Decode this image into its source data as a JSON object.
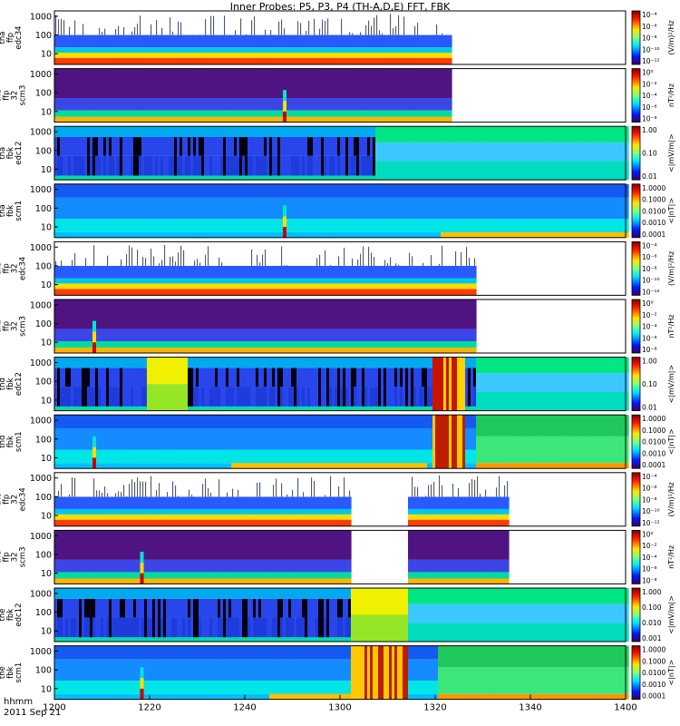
{
  "title": "Inner Probes: P5, P3, P4 (TH-A,D,E) FFT, FBK",
  "footer": {
    "format_label": "hhmm",
    "date_label": "2011 Sep 21"
  },
  "chart_data": {
    "type": "heatmap",
    "x_ticks": [
      "1200",
      "1220",
      "1240",
      "1300",
      "1320",
      "1340",
      "1400"
    ],
    "x_range_minutes": [
      0,
      120
    ],
    "y_ticks": [
      "10",
      "100",
      "1000"
    ],
    "y_scale": "log",
    "panels": [
      {
        "id": "tha-edc34",
        "ylabel": [
          "tha",
          "ffp",
          "edc34"
        ],
        "unit": "(V/m)²/Hz",
        "cb_ticks": [
          "10⁻⁴",
          "10⁻⁶",
          "10⁻⁸",
          "10⁻¹⁰",
          "10⁻¹²"
        ],
        "data_end_min": 83,
        "kind": "e",
        "scratch": 2
      },
      {
        "id": "tha-scm3",
        "ylabel": [
          "tha",
          "ffp",
          "32",
          "scm3"
        ],
        "unit": "nT²/Hz",
        "cb_ticks": [
          "10⁰",
          "10⁻²",
          "10⁻⁴",
          "10⁻⁶",
          "10⁻⁸"
        ],
        "data_end_min": 83,
        "kind": "b",
        "spike_min": 48
      },
      {
        "id": "tha-fbk-edc12",
        "ylabel": [
          "tha",
          "fbk",
          "edc12"
        ],
        "unit": "<|mV/m|>",
        "cb_ticks": [
          "1.00",
          "0.10",
          "0.01"
        ],
        "data_end_min": 120,
        "kind": "fe",
        "green_from_min": 67
      },
      {
        "id": "tha-fbk-scm1",
        "ylabel": [
          "tha",
          "fbk",
          "scm1"
        ],
        "unit": "<|nT|>",
        "cb_ticks": [
          "1.0000",
          "0.1000",
          "0.0100",
          "0.0010",
          "0.0001"
        ],
        "data_end_min": 120,
        "kind": "fb",
        "spike_min": 48,
        "yellow_from_min": 81
      },
      {
        "id": "thd-edc34",
        "ylabel": [
          "thd",
          "ffp",
          "32",
          "edc34"
        ],
        "unit": "(V/m)²/Hz",
        "cb_ticks": [
          "10⁻⁴",
          "10⁻⁶",
          "10⁻⁸",
          "10⁻¹⁰",
          "10⁻¹²"
        ],
        "data_end_min": 88,
        "kind": "e",
        "scratch": 1
      },
      {
        "id": "thd-scm3",
        "ylabel": [
          "thd",
          "ffp",
          "32",
          "scm3"
        ],
        "unit": "nT²/Hz",
        "cb_ticks": [
          "10⁰",
          "10⁻²",
          "10⁻⁴",
          "10⁻⁶",
          "10⁻⁸"
        ],
        "data_end_min": 88,
        "kind": "b",
        "spike_min": 8
      },
      {
        "id": "thd-fbk-edc12",
        "ylabel": [
          "thd",
          "fbk",
          "edc12"
        ],
        "unit": "<|mV/m|>",
        "cb_ticks": [
          "1.00",
          "0.10",
          "0.01"
        ],
        "data_end_min": 120,
        "kind": "fe",
        "yellow_band_min": [
          19,
          28
        ],
        "red_band_min": [
          79,
          86
        ],
        "green_from_min": 88
      },
      {
        "id": "thd-fbk-scm1",
        "ylabel": [
          "thd",
          "fbk",
          "scm1"
        ],
        "unit": "<|nT|>",
        "cb_ticks": [
          "1.0000",
          "0.1000",
          "0.0100",
          "0.0010",
          "0.0001"
        ],
        "data_end_min": 120,
        "kind": "fb",
        "spike_min": 8,
        "yellow_from_min": 37,
        "yellow_to_min": 78,
        "red_band_min": [
          79,
          86
        ],
        "green_from_min": 88
      },
      {
        "id": "the-edc34",
        "ylabel": [
          "the",
          "ffp",
          "32",
          "edc34"
        ],
        "unit": "(V/m)²/Hz",
        "cb_ticks": [
          "10⁻⁴",
          "10⁻⁶",
          "10⁻⁸",
          "10⁻¹⁰",
          "10⁻¹²"
        ],
        "data_end_min": 95,
        "gap_min": [
          62,
          74
        ],
        "kind": "e",
        "scratch": 1
      },
      {
        "id": "the-scm3",
        "ylabel": [
          "the",
          "ffp",
          "32",
          "scm3"
        ],
        "unit": "nT²/Hz",
        "cb_ticks": [
          "10⁰",
          "10⁻²",
          "10⁻⁴",
          "10⁻⁶",
          "10⁻⁸"
        ],
        "data_end_min": 95,
        "gap_min": [
          62,
          74
        ],
        "kind": "b",
        "spike_min": 18
      },
      {
        "id": "the-fbk-edc12",
        "ylabel": [
          "the",
          "fbk",
          "edc12"
        ],
        "unit": "<|mV/m|>",
        "cb_ticks": [
          "1.000",
          "0.100",
          "0.010",
          "0.001"
        ],
        "data_end_min": 120,
        "kind": "fe",
        "yellow_band_min": [
          62,
          74
        ],
        "green_from_min": 74
      },
      {
        "id": "the-fbk-scm1",
        "ylabel": [
          "the",
          "fbk",
          "scm1"
        ],
        "unit": "<|nT|>",
        "cb_ticks": [
          "1.0000",
          "0.1000",
          "0.0100",
          "0.0010",
          "0.0001"
        ],
        "data_end_min": 120,
        "kind": "fb",
        "spike_min": 18,
        "yellow_from_min": 45,
        "yellow_to_min": 62,
        "red_band_min": [
          62,
          74
        ],
        "green_from_min": 80
      }
    ]
  }
}
